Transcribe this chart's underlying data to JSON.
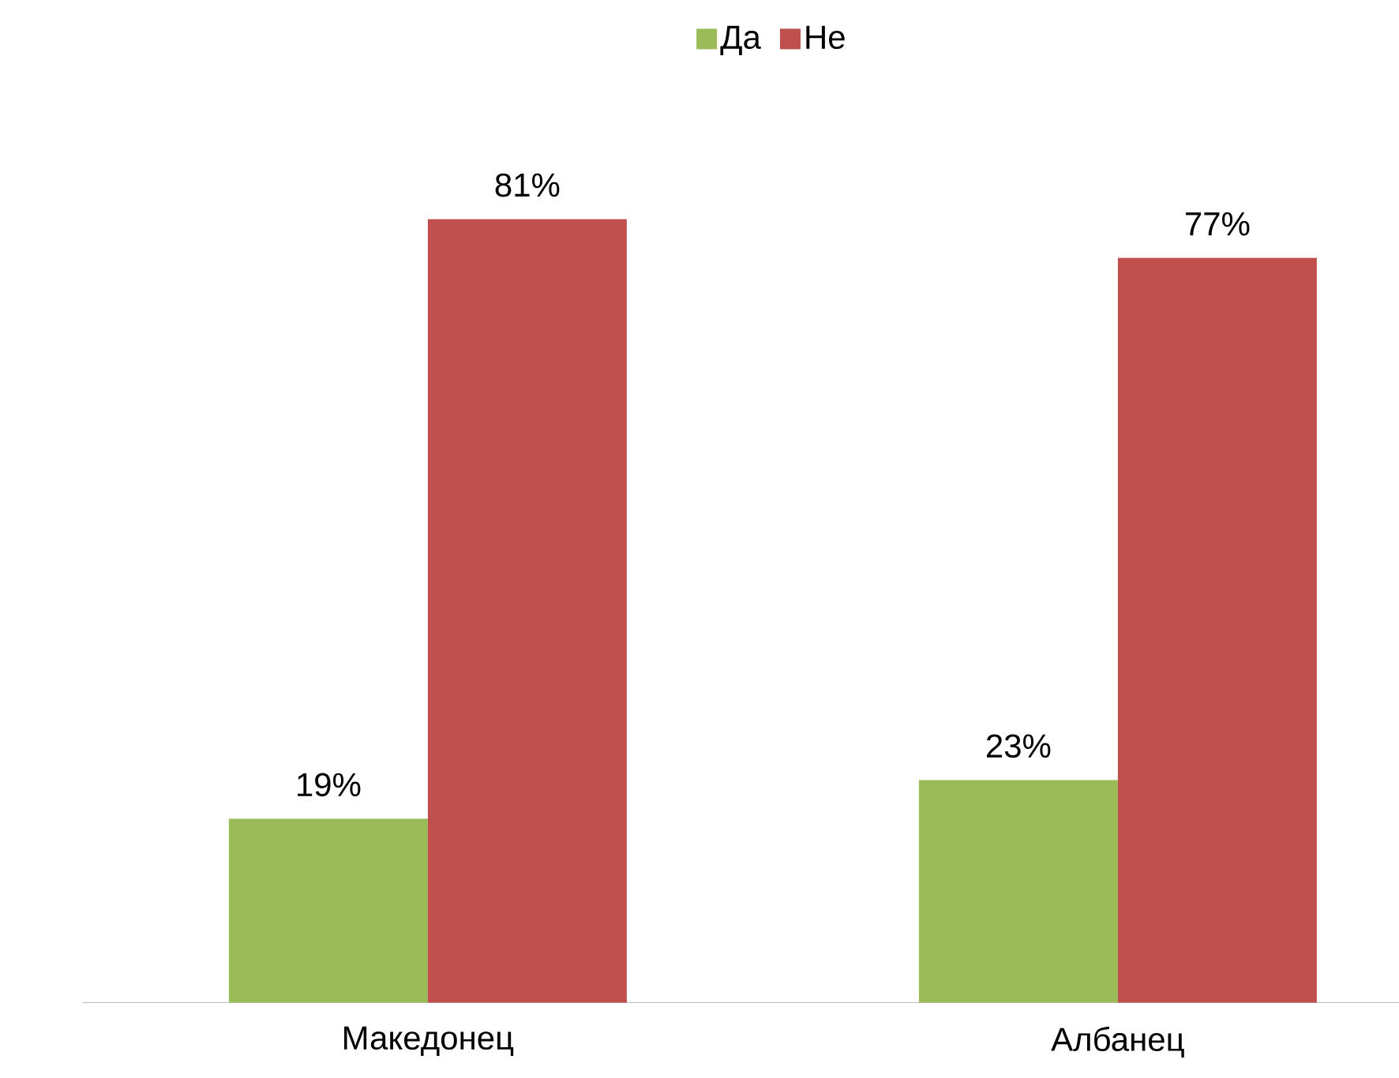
{
  "chart_data": {
    "type": "bar",
    "categories": [
      "Македонец",
      "Албанец"
    ],
    "series": [
      {
        "name": "Да",
        "color": "#9bbb59",
        "values": [
          19,
          23
        ],
        "value_labels": [
          "19%",
          "23%"
        ]
      },
      {
        "name": "Не",
        "color": "#c0504d",
        "values": [
          81,
          77
        ],
        "value_labels": [
          "81%",
          "77%"
        ]
      }
    ],
    "legend": "top"
  }
}
